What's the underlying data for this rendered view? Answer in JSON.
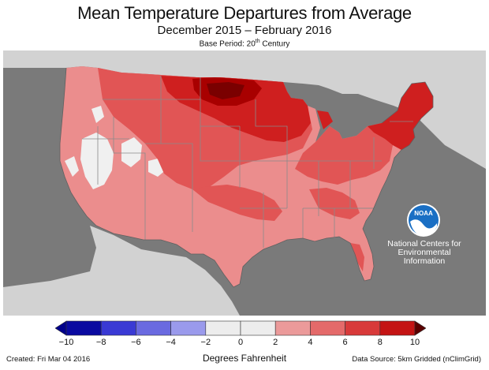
{
  "header": {
    "title": "Mean Temperature Departures from Average",
    "subtitle": "December 2015 – February 2016",
    "base_period_prefix": "Base Period: 20",
    "base_period_sup": "th",
    "base_period_suffix": " Century"
  },
  "map": {
    "colors": {
      "ocean_background": "#7a7a7a",
      "neighbor_land": "#d2d2d2",
      "state_borders": "#8a8a8a",
      "gt_8": "#a80000",
      "6_to_8": "#cf1f1f",
      "4_to_6": "#e15555",
      "2_to_4": "#eb8d8d",
      "neg2_to_2": "#f0f0f0"
    }
  },
  "logo": {
    "icon": "noaa-logo-icon",
    "text": "NOAA",
    "org_name_lines": [
      "National Centers for",
      "Environmental",
      "Information"
    ]
  },
  "colorbar": {
    "ticks": [
      "−10",
      "−8",
      "−6",
      "−4",
      "−2",
      "0",
      "2",
      "4",
      "6",
      "8",
      "10"
    ],
    "bin_colors": [
      "#0a0aa0",
      "#3a3ad4",
      "#6a6ae0",
      "#9a9aec",
      "#ededed",
      "#ededed",
      "#eb9a9a",
      "#e46a6a",
      "#d83a3a",
      "#c41414"
    ],
    "low_arrow_color": "#00008a",
    "high_arrow_color": "#5a0000",
    "label": "Degrees Fahrenheit"
  },
  "footer": {
    "created": "Created: Fri Mar 04 2016",
    "source": "Data Source: 5km Gridded (nClimGrid)"
  }
}
